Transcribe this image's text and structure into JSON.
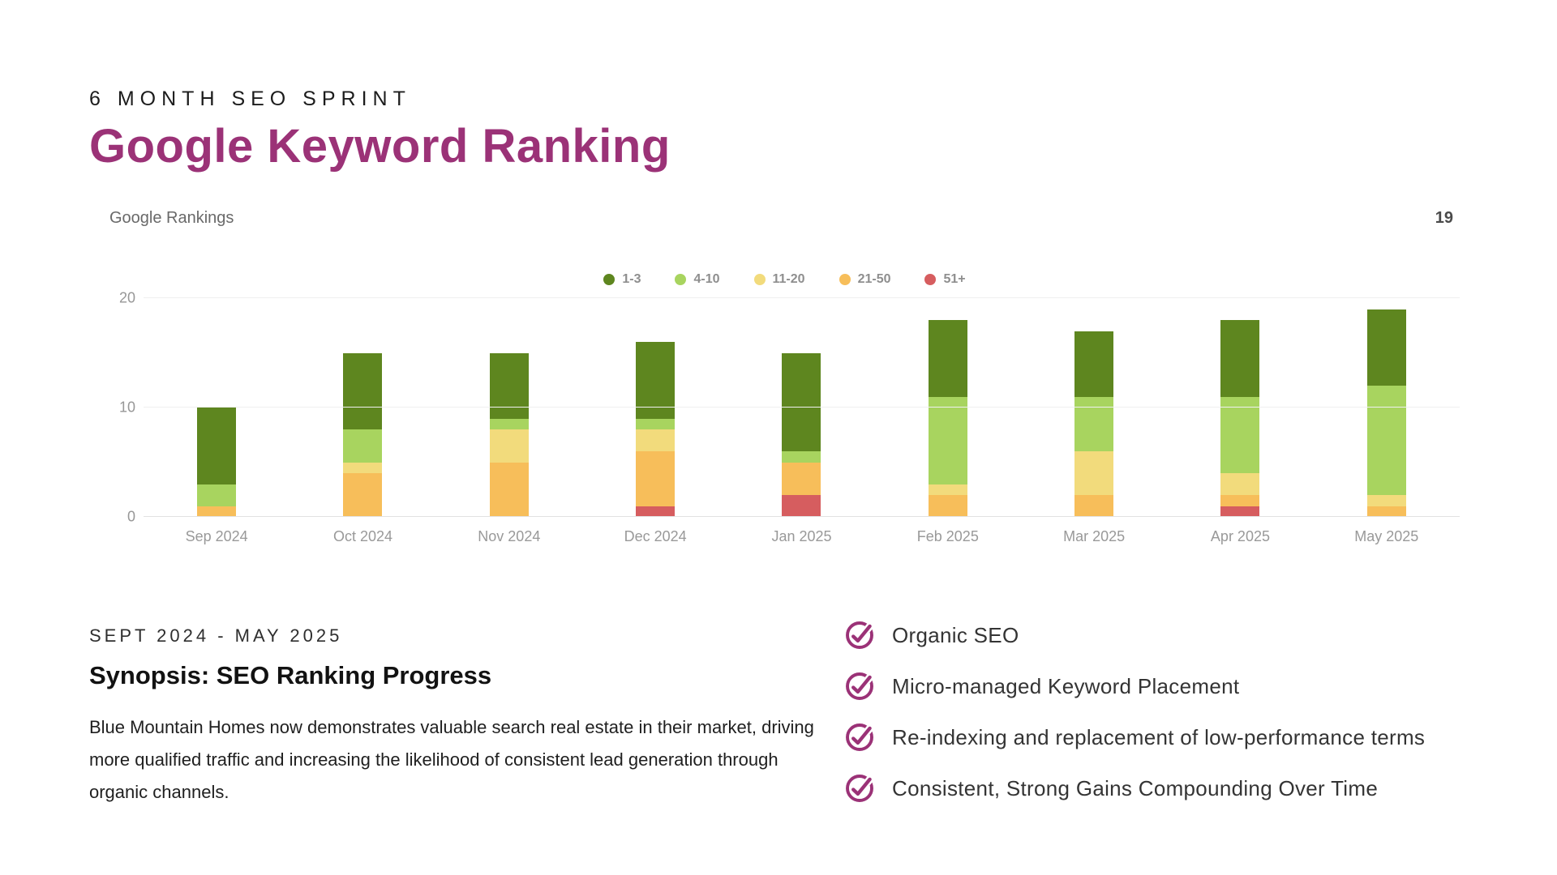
{
  "header": {
    "eyebrow": "6 MONTH SEO SPRINT",
    "title": "Google Keyword Ranking"
  },
  "chart": {
    "panel_title": "Google Rankings",
    "corner_value": "19"
  },
  "chart_data": {
    "type": "bar",
    "stacked": true,
    "title": "Google Rankings",
    "categories": [
      "Sep 2024",
      "Oct 2024",
      "Nov 2024",
      "Dec 2024",
      "Jan 2025",
      "Feb 2025",
      "Mar 2025",
      "Apr 2025",
      "May 2025"
    ],
    "series": [
      {
        "name": "1-3",
        "color": "#5e861f",
        "values": [
          7,
          7,
          6,
          7,
          9,
          7,
          6,
          7,
          7
        ]
      },
      {
        "name": "4-10",
        "color": "#a8d45f",
        "values": [
          2,
          3,
          1,
          1,
          1,
          8,
          5,
          7,
          10
        ]
      },
      {
        "name": "11-20",
        "color": "#f2db7c",
        "values": [
          0,
          1,
          3,
          2,
          0,
          1,
          4,
          2,
          1
        ]
      },
      {
        "name": "21-50",
        "color": "#f7be5a",
        "values": [
          1,
          4,
          5,
          5,
          3,
          2,
          2,
          1,
          1
        ]
      },
      {
        "name": "51+",
        "color": "#d65d5f",
        "values": [
          0,
          0,
          0,
          1,
          2,
          0,
          0,
          1,
          0
        ]
      }
    ],
    "totals": [
      10,
      15,
      15,
      16,
      15,
      18,
      17,
      18,
      19
    ],
    "ylabel": "",
    "xlabel": "",
    "ylim": [
      0,
      20
    ],
    "yticks": [
      0,
      10,
      20
    ],
    "legend_position": "top",
    "grid": true
  },
  "synopsis": {
    "eyebrow": "SEPT 2024 - MAY 2025",
    "heading": "Synopsis: SEO Ranking Progress",
    "body": "Blue Mountain Homes now demonstrates valuable search real estate in their market, driving more qualified traffic and increasing the likelihood of consistent lead generation through organic channels."
  },
  "checklist": {
    "items": [
      {
        "label": "Organic SEO"
      },
      {
        "label": "Micro-managed Keyword Placement"
      },
      {
        "label": "Re-indexing and replacement of low-performance terms"
      },
      {
        "label": "Consistent, Strong Gains Compounding Over Time"
      }
    ]
  },
  "colors": {
    "accent": "#9b3277",
    "rank_1_3": "#5e861f",
    "rank_4_10": "#a8d45f",
    "rank_11_20": "#f2db7c",
    "rank_21_50": "#f7be5a",
    "rank_51_plus": "#d65d5f"
  }
}
